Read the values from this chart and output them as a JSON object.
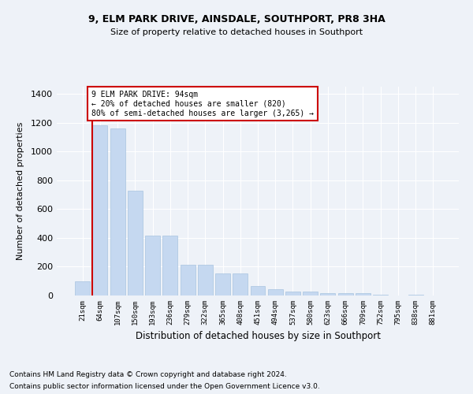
{
  "title1": "9, ELM PARK DRIVE, AINSDALE, SOUTHPORT, PR8 3HA",
  "title2": "Size of property relative to detached houses in Southport",
  "xlabel": "Distribution of detached houses by size in Southport",
  "ylabel": "Number of detached properties",
  "categories": [
    "21sqm",
    "64sqm",
    "107sqm",
    "150sqm",
    "193sqm",
    "236sqm",
    "279sqm",
    "322sqm",
    "365sqm",
    "408sqm",
    "451sqm",
    "494sqm",
    "537sqm",
    "580sqm",
    "623sqm",
    "666sqm",
    "709sqm",
    "752sqm",
    "795sqm",
    "838sqm",
    "881sqm"
  ],
  "values": [
    100,
    1180,
    1160,
    730,
    415,
    415,
    215,
    215,
    155,
    155,
    65,
    45,
    25,
    30,
    18,
    15,
    15,
    8,
    2,
    8,
    0
  ],
  "bar_color": "#c5d8f0",
  "bar_edge_color": "#a8c4e0",
  "red_line_index": 1,
  "red_line_color": "#cc0000",
  "annotation_line1": "9 ELM PARK DRIVE: 94sqm",
  "annotation_line2": "← 20% of detached houses are smaller (820)",
  "annotation_line3": "80% of semi-detached houses are larger (3,265) →",
  "annotation_box_color": "#ffffff",
  "annotation_box_edge": "#cc0000",
  "ylim": [
    0,
    1450
  ],
  "yticks": [
    0,
    200,
    400,
    600,
    800,
    1000,
    1200,
    1400
  ],
  "footer1": "Contains HM Land Registry data © Crown copyright and database right 2024.",
  "footer2": "Contains public sector information licensed under the Open Government Licence v3.0.",
  "background_color": "#eef2f8",
  "grid_color": "#ffffff"
}
